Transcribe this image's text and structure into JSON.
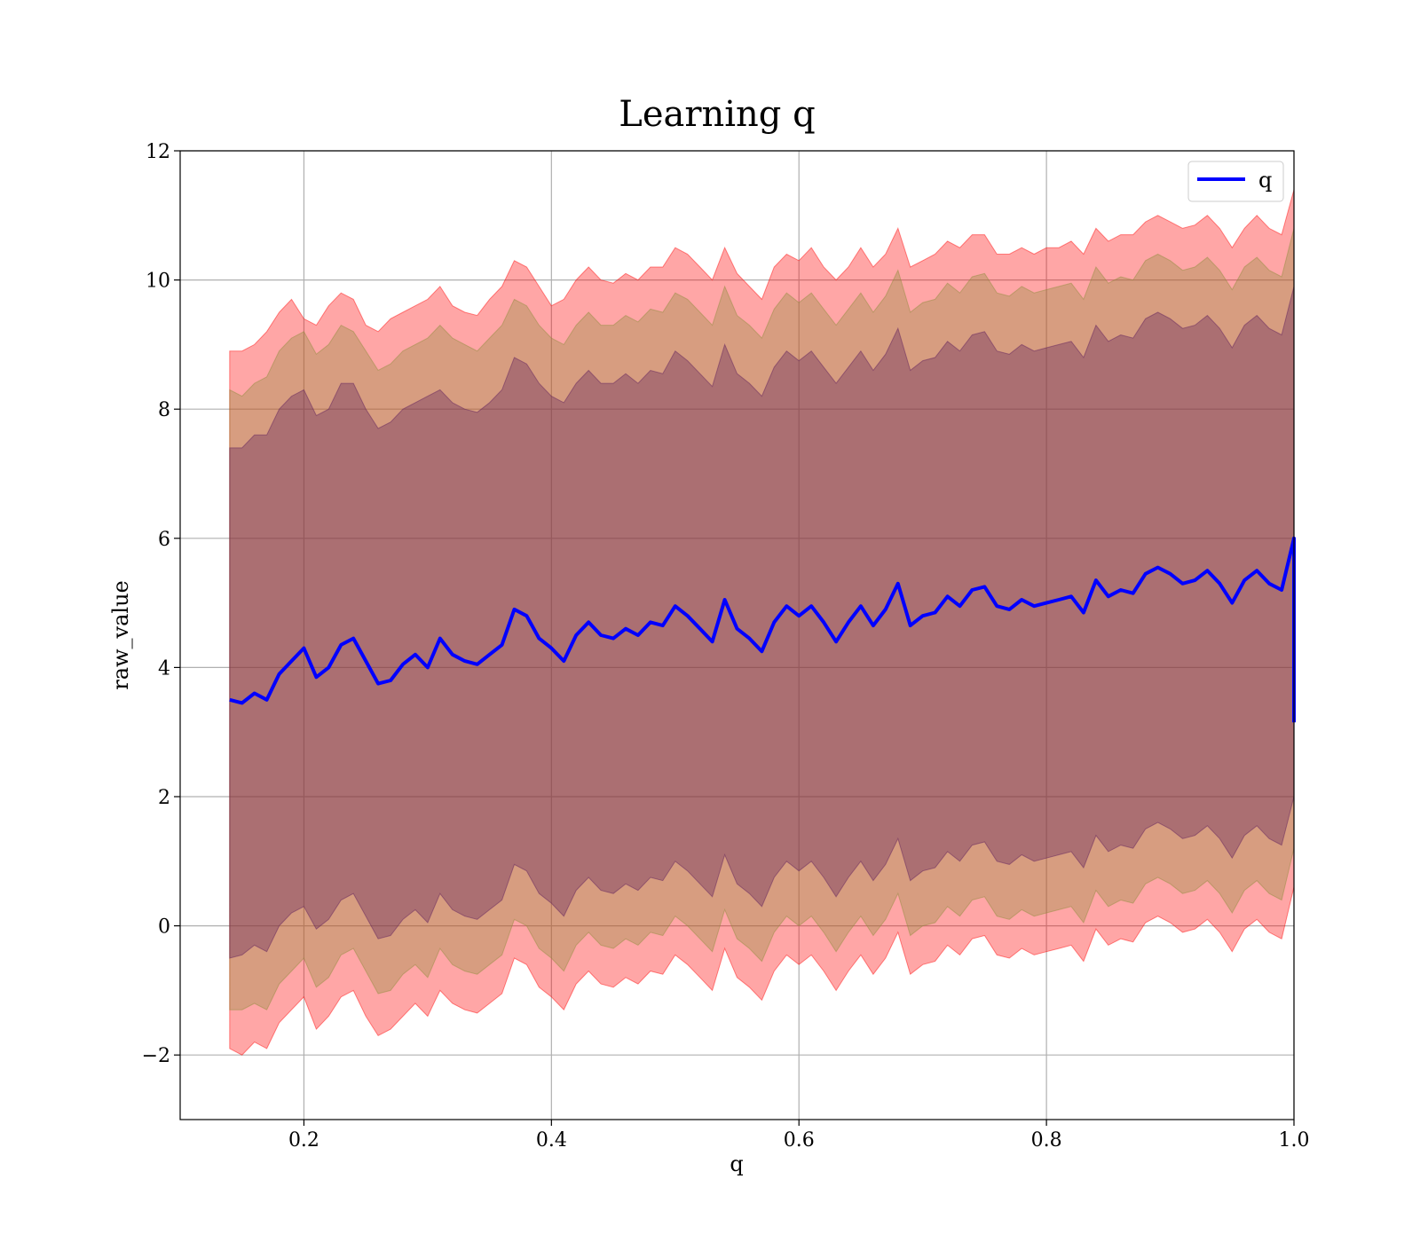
{
  "chart_data": {
    "type": "area",
    "title": "Learning q",
    "xlabel": "q",
    "ylabel": "raw_value",
    "xlim": [
      0.1,
      1.0
    ],
    "ylim": [
      -3.0,
      12.0
    ],
    "xticks": [
      0.2,
      0.4,
      0.6,
      0.8,
      1.0
    ],
    "xtick_labels": [
      "0.2",
      "0.4",
      "0.6",
      "0.8",
      "1.0"
    ],
    "yticks": [
      -2,
      0,
      2,
      4,
      6,
      8,
      10,
      12
    ],
    "ytick_labels": [
      "−2",
      "0",
      "2",
      "4",
      "6",
      "8",
      "10",
      "12"
    ],
    "grid": true,
    "legend": {
      "position": "top-right",
      "entries": [
        "q"
      ]
    },
    "series": [
      {
        "name": "q",
        "type": "line",
        "color": "#0000ff",
        "x": [
          0.14,
          0.15,
          0.16,
          0.17,
          0.18,
          0.19,
          0.2,
          0.21,
          0.22,
          0.23,
          0.24,
          0.25,
          0.26,
          0.27,
          0.28,
          0.29,
          0.3,
          0.31,
          0.32,
          0.33,
          0.34,
          0.35,
          0.36,
          0.37,
          0.38,
          0.39,
          0.4,
          0.41,
          0.42,
          0.43,
          0.44,
          0.45,
          0.46,
          0.47,
          0.48,
          0.49,
          0.5,
          0.51,
          0.52,
          0.53,
          0.54,
          0.55,
          0.56,
          0.57,
          0.58,
          0.59,
          0.6,
          0.61,
          0.62,
          0.63,
          0.64,
          0.65,
          0.66,
          0.67,
          0.68,
          0.69,
          0.7,
          0.71,
          0.72,
          0.73,
          0.74,
          0.75,
          0.76,
          0.77,
          0.78,
          0.79,
          0.8,
          0.81,
          0.82,
          0.83,
          0.84,
          0.85,
          0.86,
          0.87,
          0.88,
          0.89,
          0.9,
          0.91,
          0.92,
          0.93,
          0.94,
          0.95,
          0.96,
          0.97,
          0.98,
          0.99,
          1.0,
          1.0
        ],
        "y": [
          3.5,
          3.45,
          3.6,
          3.5,
          3.9,
          4.1,
          4.3,
          3.85,
          4.0,
          4.35,
          4.45,
          4.1,
          3.75,
          3.8,
          4.05,
          4.2,
          4.0,
          4.45,
          4.2,
          4.1,
          4.05,
          4.2,
          4.35,
          4.9,
          4.8,
          4.45,
          4.3,
          4.1,
          4.5,
          4.7,
          4.5,
          4.45,
          4.6,
          4.5,
          4.7,
          4.65,
          4.95,
          4.8,
          4.6,
          4.4,
          5.05,
          4.6,
          4.45,
          4.25,
          4.7,
          4.95,
          4.8,
          4.95,
          4.7,
          4.4,
          4.7,
          4.95,
          4.65,
          4.9,
          5.3,
          4.65,
          4.8,
          4.85,
          5.1,
          4.95,
          5.2,
          5.25,
          4.95,
          4.9,
          5.05,
          4.95,
          5.0,
          5.05,
          5.1,
          4.85,
          5.35,
          5.1,
          5.2,
          5.15,
          5.45,
          5.55,
          5.45,
          5.3,
          5.35,
          5.5,
          5.3,
          5.0,
          5.35,
          5.5,
          5.3,
          5.2,
          6.0,
          3.15
        ]
      },
      {
        "name": "",
        "type": "band",
        "color": "#ff0000",
        "x": [
          0.14,
          0.15,
          0.16,
          0.17,
          0.18,
          0.19,
          0.2,
          0.21,
          0.22,
          0.23,
          0.24,
          0.25,
          0.26,
          0.27,
          0.28,
          0.29,
          0.3,
          0.31,
          0.32,
          0.33,
          0.34,
          0.35,
          0.36,
          0.37,
          0.38,
          0.39,
          0.4,
          0.41,
          0.42,
          0.43,
          0.44,
          0.45,
          0.46,
          0.47,
          0.48,
          0.49,
          0.5,
          0.51,
          0.52,
          0.53,
          0.54,
          0.55,
          0.56,
          0.57,
          0.58,
          0.59,
          0.6,
          0.61,
          0.62,
          0.63,
          0.64,
          0.65,
          0.66,
          0.67,
          0.68,
          0.69,
          0.7,
          0.71,
          0.72,
          0.73,
          0.74,
          0.75,
          0.76,
          0.77,
          0.78,
          0.79,
          0.8,
          0.81,
          0.82,
          0.83,
          0.84,
          0.85,
          0.86,
          0.87,
          0.88,
          0.89,
          0.9,
          0.91,
          0.92,
          0.93,
          0.94,
          0.95,
          0.96,
          0.97,
          0.98,
          0.99,
          1.0,
          1.0
        ],
        "upper": [
          8.9,
          8.9,
          9.0,
          9.2,
          9.5,
          9.7,
          9.4,
          9.3,
          9.6,
          9.8,
          9.7,
          9.3,
          9.2,
          9.4,
          9.5,
          9.6,
          9.7,
          9.9,
          9.6,
          9.5,
          9.45,
          9.7,
          9.9,
          10.3,
          10.2,
          9.9,
          9.6,
          9.7,
          10.0,
          10.2,
          10.0,
          9.95,
          10.1,
          10.0,
          10.2,
          10.2,
          10.5,
          10.4,
          10.2,
          10.0,
          10.5,
          10.1,
          9.9,
          9.7,
          10.2,
          10.4,
          10.3,
          10.5,
          10.2,
          10.0,
          10.2,
          10.5,
          10.2,
          10.4,
          10.8,
          10.2,
          10.3,
          10.4,
          10.6,
          10.5,
          10.7,
          10.7,
          10.4,
          10.4,
          10.5,
          10.4,
          10.5,
          10.5,
          10.6,
          10.4,
          10.8,
          10.6,
          10.7,
          10.7,
          10.9,
          11.0,
          10.9,
          10.8,
          10.85,
          11.0,
          10.8,
          10.5,
          10.8,
          11.0,
          10.8,
          10.7,
          11.4,
          11.4
        ],
        "lower": [
          -1.9,
          -2.0,
          -1.8,
          -1.9,
          -1.5,
          -1.3,
          -1.1,
          -1.6,
          -1.4,
          -1.1,
          -1.0,
          -1.4,
          -1.7,
          -1.6,
          -1.4,
          -1.2,
          -1.4,
          -1.0,
          -1.2,
          -1.3,
          -1.35,
          -1.2,
          -1.05,
          -0.5,
          -0.6,
          -0.95,
          -1.1,
          -1.3,
          -0.9,
          -0.7,
          -0.9,
          -0.95,
          -0.8,
          -0.9,
          -0.7,
          -0.75,
          -0.45,
          -0.6,
          -0.8,
          -1.0,
          -0.35,
          -0.8,
          -0.95,
          -1.15,
          -0.7,
          -0.45,
          -0.6,
          -0.45,
          -0.7,
          -1.0,
          -0.7,
          -0.45,
          -0.75,
          -0.5,
          -0.1,
          -0.75,
          -0.6,
          -0.55,
          -0.3,
          -0.45,
          -0.2,
          -0.15,
          -0.45,
          -0.5,
          -0.35,
          -0.45,
          -0.4,
          -0.35,
          -0.3,
          -0.55,
          -0.05,
          -0.3,
          -0.2,
          -0.25,
          0.05,
          0.15,
          0.05,
          -0.1,
          -0.05,
          0.1,
          -0.1,
          -0.4,
          -0.05,
          0.1,
          -0.1,
          -0.2,
          0.6,
          -2.2
        ]
      },
      {
        "name": "",
        "type": "band",
        "color": "#8c8c3a",
        "x": [
          0.14,
          0.15,
          0.16,
          0.17,
          0.18,
          0.19,
          0.2,
          0.21,
          0.22,
          0.23,
          0.24,
          0.25,
          0.26,
          0.27,
          0.28,
          0.29,
          0.3,
          0.31,
          0.32,
          0.33,
          0.34,
          0.35,
          0.36,
          0.37,
          0.38,
          0.39,
          0.4,
          0.41,
          0.42,
          0.43,
          0.44,
          0.45,
          0.46,
          0.47,
          0.48,
          0.49,
          0.5,
          0.51,
          0.52,
          0.53,
          0.54,
          0.55,
          0.56,
          0.57,
          0.58,
          0.59,
          0.6,
          0.61,
          0.62,
          0.63,
          0.64,
          0.65,
          0.66,
          0.67,
          0.68,
          0.69,
          0.7,
          0.71,
          0.72,
          0.73,
          0.74,
          0.75,
          0.76,
          0.77,
          0.78,
          0.79,
          0.8,
          0.81,
          0.82,
          0.83,
          0.84,
          0.85,
          0.86,
          0.87,
          0.88,
          0.89,
          0.9,
          0.91,
          0.92,
          0.93,
          0.94,
          0.95,
          0.96,
          0.97,
          0.98,
          0.99,
          1.0,
          1.0
        ],
        "upper": [
          8.3,
          8.2,
          8.4,
          8.5,
          8.9,
          9.1,
          9.2,
          8.85,
          9.0,
          9.3,
          9.2,
          8.9,
          8.6,
          8.7,
          8.9,
          9.0,
          9.1,
          9.3,
          9.1,
          9.0,
          8.9,
          9.1,
          9.3,
          9.7,
          9.6,
          9.3,
          9.1,
          9.0,
          9.3,
          9.5,
          9.3,
          9.3,
          9.45,
          9.35,
          9.55,
          9.5,
          9.8,
          9.7,
          9.5,
          9.3,
          9.9,
          9.45,
          9.3,
          9.1,
          9.55,
          9.8,
          9.65,
          9.8,
          9.55,
          9.3,
          9.55,
          9.8,
          9.5,
          9.75,
          10.15,
          9.5,
          9.65,
          9.7,
          9.95,
          9.8,
          10.05,
          10.1,
          9.8,
          9.75,
          9.9,
          9.8,
          9.85,
          9.9,
          9.95,
          9.7,
          10.2,
          9.95,
          10.05,
          10.0,
          10.3,
          10.4,
          10.3,
          10.15,
          10.2,
          10.35,
          10.15,
          9.85,
          10.2,
          10.35,
          10.15,
          10.05,
          10.8,
          10.8
        ],
        "lower": [
          -1.3,
          -1.3,
          -1.2,
          -1.3,
          -0.9,
          -0.7,
          -0.5,
          -0.95,
          -0.8,
          -0.45,
          -0.35,
          -0.7,
          -1.05,
          -1.0,
          -0.75,
          -0.6,
          -0.8,
          -0.35,
          -0.6,
          -0.7,
          -0.75,
          -0.6,
          -0.45,
          0.1,
          0.0,
          -0.35,
          -0.5,
          -0.7,
          -0.3,
          -0.1,
          -0.3,
          -0.35,
          -0.2,
          -0.3,
          -0.1,
          -0.15,
          0.15,
          0.0,
          -0.2,
          -0.4,
          0.25,
          -0.2,
          -0.35,
          -0.55,
          -0.1,
          0.15,
          0.0,
          0.15,
          -0.1,
          -0.4,
          -0.1,
          0.15,
          -0.15,
          0.1,
          0.5,
          -0.15,
          0.0,
          0.05,
          0.3,
          0.15,
          0.4,
          0.45,
          0.15,
          0.1,
          0.25,
          0.15,
          0.2,
          0.25,
          0.3,
          0.05,
          0.55,
          0.3,
          0.4,
          0.35,
          0.65,
          0.75,
          0.65,
          0.5,
          0.55,
          0.7,
          0.5,
          0.2,
          0.55,
          0.7,
          0.5,
          0.4,
          1.2,
          -1.2
        ]
      },
      {
        "name": "",
        "type": "band",
        "color": "#5a1a5a",
        "x": [
          0.14,
          0.15,
          0.16,
          0.17,
          0.18,
          0.19,
          0.2,
          0.21,
          0.22,
          0.23,
          0.24,
          0.25,
          0.26,
          0.27,
          0.28,
          0.29,
          0.3,
          0.31,
          0.32,
          0.33,
          0.34,
          0.35,
          0.36,
          0.37,
          0.38,
          0.39,
          0.4,
          0.41,
          0.42,
          0.43,
          0.44,
          0.45,
          0.46,
          0.47,
          0.48,
          0.49,
          0.5,
          0.51,
          0.52,
          0.53,
          0.54,
          0.55,
          0.56,
          0.57,
          0.58,
          0.59,
          0.6,
          0.61,
          0.62,
          0.63,
          0.64,
          0.65,
          0.66,
          0.67,
          0.68,
          0.69,
          0.7,
          0.71,
          0.72,
          0.73,
          0.74,
          0.75,
          0.76,
          0.77,
          0.78,
          0.79,
          0.8,
          0.81,
          0.82,
          0.83,
          0.84,
          0.85,
          0.86,
          0.87,
          0.88,
          0.89,
          0.9,
          0.91,
          0.92,
          0.93,
          0.94,
          0.95,
          0.96,
          0.97,
          0.98,
          0.99,
          1.0,
          1.0
        ],
        "upper": [
          7.4,
          7.4,
          7.6,
          7.6,
          8.0,
          8.2,
          8.3,
          7.9,
          8.0,
          8.4,
          8.4,
          8.0,
          7.7,
          7.8,
          8.0,
          8.1,
          8.2,
          8.3,
          8.1,
          8.0,
          7.95,
          8.1,
          8.3,
          8.8,
          8.7,
          8.4,
          8.2,
          8.1,
          8.4,
          8.6,
          8.4,
          8.4,
          8.55,
          8.4,
          8.6,
          8.55,
          8.9,
          8.75,
          8.55,
          8.35,
          9.0,
          8.55,
          8.4,
          8.2,
          8.65,
          8.9,
          8.75,
          8.9,
          8.65,
          8.4,
          8.65,
          8.9,
          8.6,
          8.85,
          9.25,
          8.6,
          8.75,
          8.8,
          9.05,
          8.9,
          9.15,
          9.2,
          8.9,
          8.85,
          9.0,
          8.9,
          8.95,
          9.0,
          9.05,
          8.8,
          9.3,
          9.05,
          9.15,
          9.1,
          9.4,
          9.5,
          9.4,
          9.25,
          9.3,
          9.45,
          9.25,
          8.95,
          9.3,
          9.45,
          9.25,
          9.15,
          9.9,
          9.9
        ],
        "lower": [
          -0.5,
          -0.45,
          -0.3,
          -0.4,
          0.0,
          0.2,
          0.3,
          -0.05,
          0.1,
          0.4,
          0.5,
          0.15,
          -0.2,
          -0.15,
          0.1,
          0.25,
          0.05,
          0.5,
          0.25,
          0.15,
          0.1,
          0.25,
          0.4,
          0.95,
          0.85,
          0.5,
          0.35,
          0.15,
          0.55,
          0.75,
          0.55,
          0.5,
          0.65,
          0.55,
          0.75,
          0.7,
          1.0,
          0.85,
          0.65,
          0.45,
          1.1,
          0.65,
          0.5,
          0.3,
          0.75,
          1.0,
          0.85,
          1.0,
          0.75,
          0.45,
          0.75,
          1.0,
          0.7,
          0.95,
          1.35,
          0.7,
          0.85,
          0.9,
          1.15,
          1.0,
          1.25,
          1.3,
          1.0,
          0.95,
          1.1,
          1.0,
          1.05,
          1.1,
          1.15,
          0.9,
          1.4,
          1.15,
          1.25,
          1.2,
          1.5,
          1.6,
          1.5,
          1.35,
          1.4,
          1.55,
          1.35,
          1.05,
          1.4,
          1.55,
          1.35,
          1.25,
          2.0,
          -0.4
        ]
      }
    ]
  }
}
